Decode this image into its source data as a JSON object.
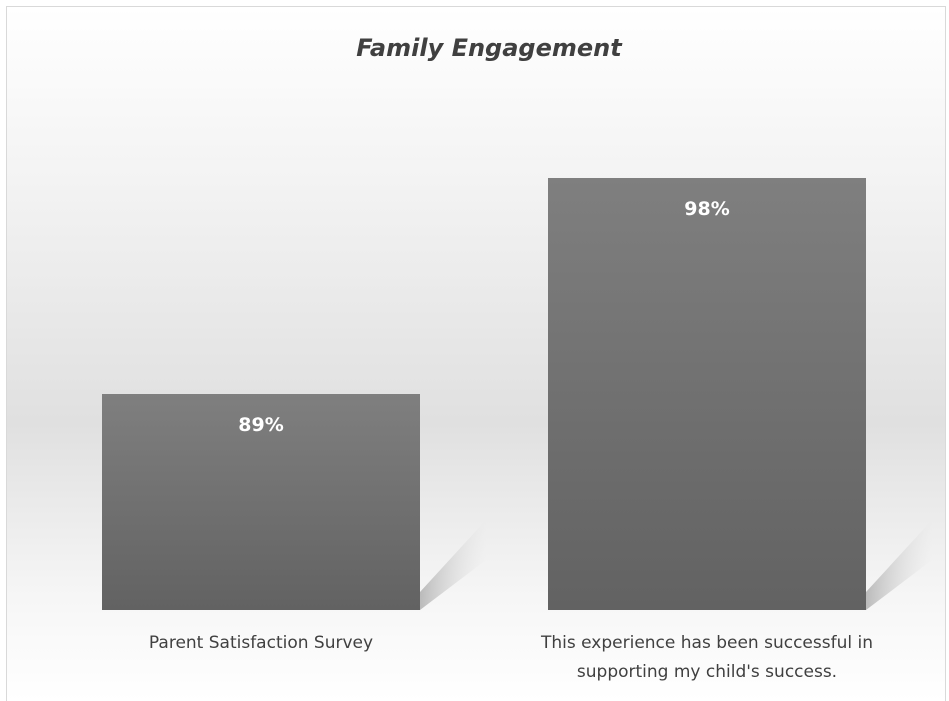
{
  "chart_data": {
    "type": "bar",
    "title": "Family Engagement",
    "categories": [
      [
        "Parent Satisfaction Survey"
      ],
      [
        "This experience has been successful in",
        "supporting my child's success."
      ]
    ],
    "values": [
      89,
      98
    ],
    "data_labels": [
      "89%",
      "98%"
    ],
    "ylim": [
      80,
      100
    ],
    "xlabel": "",
    "ylabel": "",
    "grid": false,
    "legend": "none",
    "colors": {
      "bar_top": "#7f7f7f",
      "bar_bottom": "#626262",
      "label": "#ffffff",
      "text": "#404040"
    }
  }
}
